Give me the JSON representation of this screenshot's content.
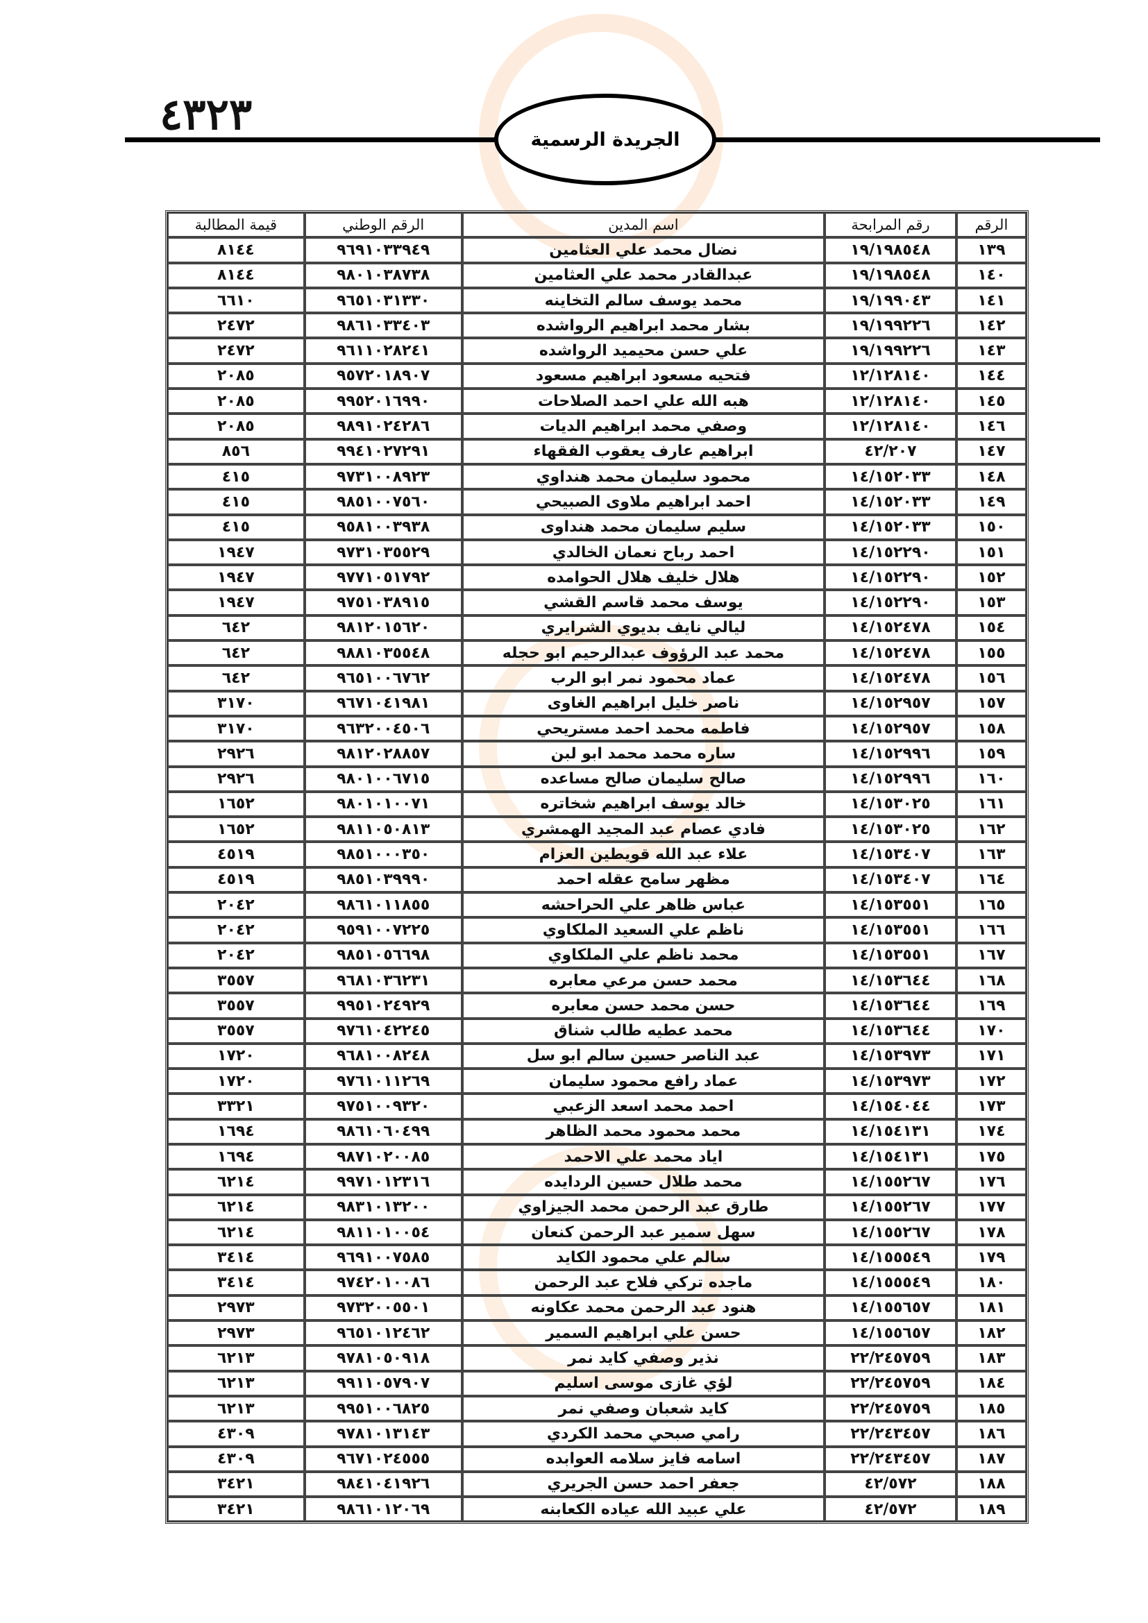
{
  "header": {
    "page_number": "٤٣٢٣",
    "gazette_title": "الجريدة الرسمية"
  },
  "table": {
    "columns": [
      "الرقم",
      "رقم المرابحة",
      "اسم المدين",
      "الرقم الوطني",
      "قيمة المطالبة"
    ],
    "rows": [
      [
        "١٣٩",
        "١٩/١٩٨٥٤٨",
        "نضال محمد علي العثامين",
        "٩٦٩١٠٣٣٩٤٩",
        "٨١٤٤"
      ],
      [
        "١٤٠",
        "١٩/١٩٨٥٤٨",
        "عبدالقادر محمد علي العثامين",
        "٩٨٠١٠٣٨٧٣٨",
        "٨١٤٤"
      ],
      [
        "١٤١",
        "١٩/١٩٩٠٤٣",
        "محمد يوسف سالم التخاينه",
        "٩٦٥١٠٣١٣٣٠",
        "٦٦١٠"
      ],
      [
        "١٤٢",
        "١٩/١٩٩٢٢٦",
        "بشار محمد ابراهيم الرواشده",
        "٩٨٦١٠٣٣٤٠٣",
        "٢٤٧٢"
      ],
      [
        "١٤٣",
        "١٩/١٩٩٢٢٦",
        "علي حسن محيميد الرواشده",
        "٩٦١١٠٢٨٢٤١",
        "٢٤٧٢"
      ],
      [
        "١٤٤",
        "١٢/١٢٨١٤٠",
        "فتحيه مسعود ابراهيم مسعود",
        "٩٥٧٢٠١٨٩٠٧",
        "٢٠٨٥"
      ],
      [
        "١٤٥",
        "١٢/١٢٨١٤٠",
        "هبه الله علي احمد الصلاحات",
        "٩٩٥٢٠١٦٩٩٠",
        "٢٠٨٥"
      ],
      [
        "١٤٦",
        "١٢/١٢٨١٤٠",
        "وصفي محمد ابراهيم الديات",
        "٩٨٩١٠٢٤٢٨٦",
        "٢٠٨٥"
      ],
      [
        "١٤٧",
        "٤٢/٢٠٧",
        "ابراهيم عارف يعقوب الفقهاء",
        "٩٩٤١٠٢٧٢٩١",
        "٨٥٦"
      ],
      [
        "١٤٨",
        "١٤/١٥٢٠٣٣",
        "محمود سليمان محمد هنداوي",
        "٩٧٣١٠٠٨٩٢٣",
        "٤١٥"
      ],
      [
        "١٤٩",
        "١٤/١٥٢٠٣٣",
        "احمد ابراهيم ملاوى الصبيحي",
        "٩٨٥١٠٠٧٥٦٠",
        "٤١٥"
      ],
      [
        "١٥٠",
        "١٤/١٥٢٠٣٣",
        "سليم سليمان محمد هنداوى",
        "٩٥٨١٠٠٣٩٣٨",
        "٤١٥"
      ],
      [
        "١٥١",
        "١٤/١٥٢٢٩٠",
        "احمد رباح نعمان الخالدي",
        "٩٧٣١٠٣٥٥٢٩",
        "١٩٤٧"
      ],
      [
        "١٥٢",
        "١٤/١٥٢٢٩٠",
        "هلال خليف هلال الحوامده",
        "٩٧٧١٠٥١٧٩٢",
        "١٩٤٧"
      ],
      [
        "١٥٣",
        "١٤/١٥٢٢٩٠",
        "يوسف محمد قاسم القشي",
        "٩٧٥١٠٣٨٩١٥",
        "١٩٤٧"
      ],
      [
        "١٥٤",
        "١٤/١٥٢٤٧٨",
        "ليالي نايف بديوي الشرايري",
        "٩٨١٢٠١٥٦٢٠",
        "٦٤٢"
      ],
      [
        "١٥٥",
        "١٤/١٥٢٤٧٨",
        "محمد عبد الرؤوف عبدالرحيم ابو حجله",
        "٩٨٨١٠٣٥٥٤٨",
        "٦٤٢"
      ],
      [
        "١٥٦",
        "١٤/١٥٢٤٧٨",
        "عماد محمود نمر ابو الرب",
        "٩٦٥١٠٠٦٧٦٢",
        "٦٤٢"
      ],
      [
        "١٥٧",
        "١٤/١٥٢٩٥٧",
        "ناصر خليل ابراهيم الغاوى",
        "٩٦٧١٠٤١٩٨١",
        "٣١٧٠"
      ],
      [
        "١٥٨",
        "١٤/١٥٢٩٥٧",
        "فاطمه محمد احمد مستريحي",
        "٩٦٣٢٠٠٤٥٠٦",
        "٣١٧٠"
      ],
      [
        "١٥٩",
        "١٤/١٥٢٩٩٦",
        "ساره محمد محمد ابو لبن",
        "٩٨١٢٠٢٨٨٥٧",
        "٢٩٢٦"
      ],
      [
        "١٦٠",
        "١٤/١٥٢٩٩٦",
        "صالح سليمان صالح مساعده",
        "٩٨٠١٠٠٦٧١٥",
        "٢٩٢٦"
      ],
      [
        "١٦١",
        "١٤/١٥٣٠٢٥",
        "خالد يوسف ابراهيم شخاتره",
        "٩٨٠١٠١٠٠٧١",
        "١٦٥٢"
      ],
      [
        "١٦٢",
        "١٤/١٥٣٠٢٥",
        "فادي عصام عبد المجيد الهمشري",
        "٩٨١١٠٥٠٨١٣",
        "١٦٥٢"
      ],
      [
        "١٦٣",
        "١٤/١٥٣٤٠٧",
        "علاء عبد الله قويطين العزام",
        "٩٨٥١٠٠٠٣٥٠",
        "٤٥١٩"
      ],
      [
        "١٦٤",
        "١٤/١٥٣٤٠٧",
        "مظهر سامح عقله احمد",
        "٩٨٥١٠٣٩٩٩٠",
        "٤٥١٩"
      ],
      [
        "١٦٥",
        "١٤/١٥٣٥٥١",
        "عباس ظاهر علي الحراحشه",
        "٩٨٦١٠١١٨٥٥",
        "٢٠٤٢"
      ],
      [
        "١٦٦",
        "١٤/١٥٣٥٥١",
        "ناظم علي السعيد الملكاوي",
        "٩٥٩١٠٠٧٢٢٥",
        "٢٠٤٢"
      ],
      [
        "١٦٧",
        "١٤/١٥٣٥٥١",
        "محمد ناظم علي الملكاوي",
        "٩٨٥١٠٥٦٦٩٨",
        "٢٠٤٢"
      ],
      [
        "١٦٨",
        "١٤/١٥٣٦٤٤",
        "محمد حسن مرعي معابره",
        "٩٦٨١٠٣٦٢٣١",
        "٣٥٥٧"
      ],
      [
        "١٦٩",
        "١٤/١٥٣٦٤٤",
        "حسن محمد حسن معابره",
        "٩٩٥١٠٢٤٩٢٩",
        "٣٥٥٧"
      ],
      [
        "١٧٠",
        "١٤/١٥٣٦٤٤",
        "محمد عطيه طالب شناق",
        "٩٧٦١٠٤٢٢٤٥",
        "٣٥٥٧"
      ],
      [
        "١٧١",
        "١٤/١٥٣٩٧٣",
        "عبد الناصر حسين سالم ابو سل",
        "٩٦٨١٠٠٨٢٤٨",
        "١٧٢٠"
      ],
      [
        "١٧٢",
        "١٤/١٥٣٩٧٣",
        "عماد رافع محمود سليمان",
        "٩٧٦١٠١١٢٦٩",
        "١٧٢٠"
      ],
      [
        "١٧٣",
        "١٤/١٥٤٠٤٤",
        "احمد محمد اسعد الزعبي",
        "٩٧٥١٠٠٩٣٢٠",
        "٣٣٢١"
      ],
      [
        "١٧٤",
        "١٤/١٥٤١٣١",
        "محمد محمود محمد الظاهر",
        "٩٨٦١٠٦٠٤٩٩",
        "١٦٩٤"
      ],
      [
        "١٧٥",
        "١٤/١٥٤١٣١",
        "اياد محمد علي الاحمد",
        "٩٨٧١٠٢٠٠٨٥",
        "١٦٩٤"
      ],
      [
        "١٧٦",
        "١٤/١٥٥٢٦٧",
        "محمد طلال حسين الردايده",
        "٩٩٧١٠١٢٣١٦",
        "٦٢١٤"
      ],
      [
        "١٧٧",
        "١٤/١٥٥٢٦٧",
        "طارق عبد الرحمن محمد الجيزاوي",
        "٩٨٣١٠١٣٢٠٠",
        "٦٢١٤"
      ],
      [
        "١٧٨",
        "١٤/١٥٥٢٦٧",
        "سهل سمير عبد الرحمن كنعان",
        "٩٨١١٠١٠٠٥٤",
        "٦٢١٤"
      ],
      [
        "١٧٩",
        "١٤/١٥٥٥٤٩",
        "سالم علي محمود الكايد",
        "٩٦٩١٠٠٧٥٨٥",
        "٣٤١٤"
      ],
      [
        "١٨٠",
        "١٤/١٥٥٥٤٩",
        "ماجده تركي فلاح عبد الرحمن",
        "٩٧٤٢٠١٠٠٨٦",
        "٣٤١٤"
      ],
      [
        "١٨١",
        "١٤/١٥٥٦٥٧",
        "هنود عبد الرحمن محمد عكاونه",
        "٩٧٣٢٠٠٥٥٠١",
        "٢٩٧٣"
      ],
      [
        "١٨٢",
        "١٤/١٥٥٦٥٧",
        "حسن علي ابراهيم السمير",
        "٩٦٥١٠١٢٤٦٢",
        "٢٩٧٣"
      ],
      [
        "١٨٣",
        "٢٢/٢٤٥٧٥٩",
        "نذير وصفي كايد نمر",
        "٩٧٨١٠٥٠٩١٨",
        "٦٢١٣"
      ],
      [
        "١٨٤",
        "٢٢/٢٤٥٧٥٩",
        "لؤي غازى موسى اسليم",
        "٩٩١١٠٥٧٩٠٧",
        "٦٢١٣"
      ],
      [
        "١٨٥",
        "٢٢/٢٤٥٧٥٩",
        "كايد شعبان وصفي نمر",
        "٩٩٥١٠٠٦٨٢٥",
        "٦٢١٣"
      ],
      [
        "١٨٦",
        "٢٢/٢٤٣٤٥٧",
        "رامي صبحي محمد الكردي",
        "٩٧٨١٠١٣١٤٣",
        "٤٣٠٩"
      ],
      [
        "١٨٧",
        "٢٢/٢٤٣٤٥٧",
        "اسامه فايز سلامه العوابده",
        "٩٦٧١٠٢٤٥٥٥",
        "٤٣٠٩"
      ],
      [
        "١٨٨",
        "٤٢/٥٧٢",
        "جعفر احمد حسن الجريري",
        "٩٨٤١٠٤١٩٢٦",
        "٣٤٢١"
      ],
      [
        "١٨٩",
        "٤٢/٥٧٢",
        "علي عبيد الله عياده الكعابنه",
        "٩٨٦١٠١٢٠٦٩",
        "٣٤٢١"
      ]
    ]
  },
  "colors": {
    "text": "#111111",
    "border": "#444444",
    "watermark": "#f6c9a0"
  }
}
